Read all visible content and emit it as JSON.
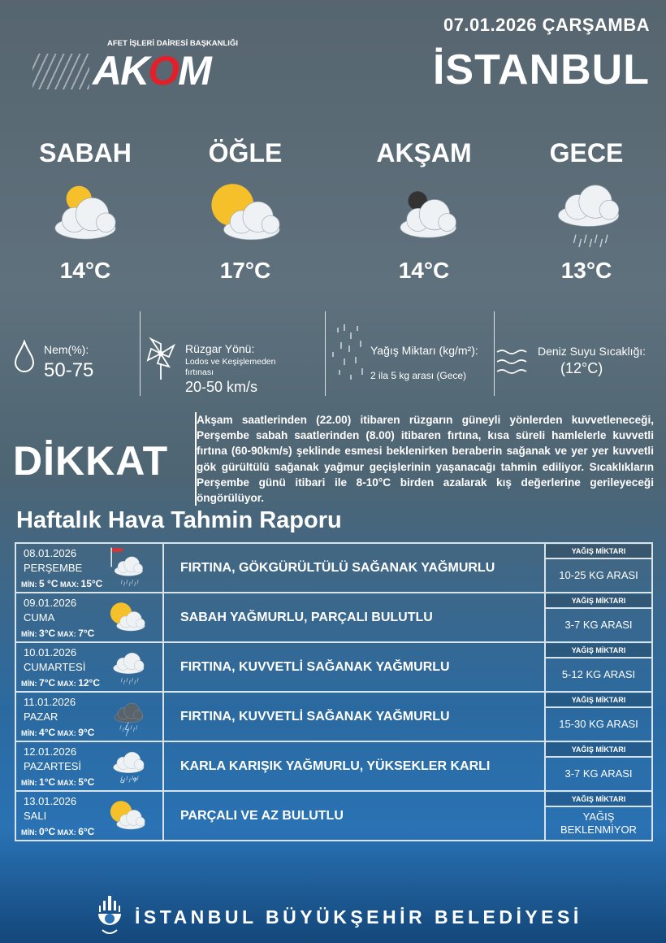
{
  "header": {
    "date": "07.01.2026 ÇARŞAMBA",
    "city": "İSTANBUL",
    "logo_sub": "AFET İŞLERİ DAİRESİ BAŞKANLIĞI",
    "logo_text": "AKOM"
  },
  "periods": [
    {
      "label": "SABAH",
      "temp": "14°C",
      "icon": "partly-cloudy-sun"
    },
    {
      "label": "ÖĞLE",
      "temp": "17°C",
      "icon": "sun-cloud"
    },
    {
      "label": "AKŞAM",
      "temp": "14°C",
      "icon": "partly-cloudy-moon"
    },
    {
      "label": "GECE",
      "temp": "13°C",
      "icon": "cloud-rain"
    }
  ],
  "info": {
    "humidity": {
      "label": "Nem(%):",
      "value": "50-75"
    },
    "wind": {
      "label": "Rüzgar Yönü:",
      "desc": "Lodos ve Keşişlemeden fırtınası",
      "value": "20-50 km/s"
    },
    "rain": {
      "label": "Yağış Miktarı (kg/m²):",
      "value": "2 ila 5 kg arası (Gece)"
    },
    "sea": {
      "label": "Deniz Suyu Sıcaklığı:",
      "value": "(12°C)"
    }
  },
  "warning": {
    "title": "DİKKAT",
    "text": "Akşam saatlerinden (22.00) itibaren rüzgarın güneyli yönlerden kuvvetleneceği, Perşembe sabah saatlerinden (8.00) itibaren fırtına, kısa süreli hamlelerle kuvvetli fırtına (60-90km/s) şeklinde esmesi beklenirken beraberin sağanak ve yer yer kuvvetli gök gürültülü sağanak yağmur geçişlerinin yaşanacağı tahmin ediliyor. Sıcaklıkların Perşembe günü itibari ile 8-10°C birden azalarak kış değerlerine gerileyeceği öngörülüyor."
  },
  "weekly": {
    "title": "Haftalık Hava Tahmin Raporu",
    "rain_header": "YAĞIŞ MİKTARI",
    "min_label": "MİN:",
    "max_label": "MAX:",
    "days": [
      {
        "date": "08.01.2026",
        "day": "PERŞEMBE",
        "min": "5 °C",
        "max": "15°C",
        "desc": "FIRTINA, GÖKGÜRÜLTÜLÜ SAĞANAK YAĞMURLU",
        "rain": "10-25 KG ARASI",
        "icon": "storm-wind-rain"
      },
      {
        "date": "09.01.2026",
        "day": "CUMA",
        "min": "3°C",
        "max": "7°C",
        "desc": "SABAH YAĞMURLU, PARÇALI BULUTLU",
        "rain": "3-7 KG ARASI",
        "icon": "sun-cloud"
      },
      {
        "date": "10.01.2026",
        "day": "CUMARTESİ",
        "min": "7°C",
        "max": "12°C",
        "desc": "FIRTINA, KUVVETLİ SAĞANAK YAĞMURLU",
        "rain": "5-12 KG ARASI",
        "icon": "cloud-rain"
      },
      {
        "date": "11.01.2026",
        "day": "PAZAR",
        "min": "4°C",
        "max": "9°C",
        "desc": "FIRTINA, KUVVETLİ SAĞANAK YAĞMURLU",
        "rain": "15-30 KG ARASI",
        "icon": "thunderstorm"
      },
      {
        "date": "12.01.2026",
        "day": "PAZARTESİ",
        "min": "1°C",
        "max": "5°C",
        "desc": "KARLA KARIŞIK YAĞMURLU, YÜKSEKLER KARLI",
        "rain": "3-7 KG ARASI",
        "icon": "sleet"
      },
      {
        "date": "13.01.2026",
        "day": "SALI",
        "min": "0°C",
        "max": "6°C",
        "desc": "PARÇALI VE AZ BULUTLU",
        "rain": "YAĞIŞ BEKLENMİYOR",
        "icon": "sun-cloud"
      }
    ]
  },
  "footer": {
    "text": "İSTANBUL BÜYÜKŞEHİR BELEDİYESİ"
  },
  "colors": {
    "accent_red": "#e3202a",
    "table_border": "#d9e3ea"
  }
}
